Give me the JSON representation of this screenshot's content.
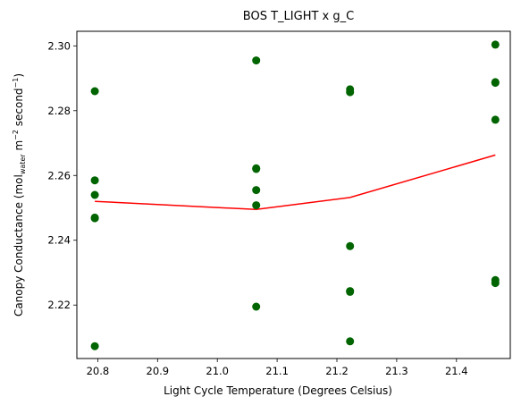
{
  "chart_data": {
    "type": "scatter",
    "title": "BOS T_LIGHT x g_C",
    "xlabel": "Light Cycle Temperature (Degrees Celsius)",
    "ylabel": {
      "prefix": "Canopy Conductance (mol",
      "subscript": "water",
      "middle": " m",
      "sup1": "−2",
      "middle2": " second",
      "sup2": "−1",
      "suffix": ")"
    },
    "xlim": [
      20.765,
      21.49
    ],
    "ylim": [
      2.2035,
      2.3045
    ],
    "xticks": [
      "20.8",
      "20.9",
      "21.0",
      "21.1",
      "21.2",
      "21.3",
      "21.4"
    ],
    "xtick_values": [
      20.8,
      20.9,
      21.0,
      21.1,
      21.2,
      21.3,
      21.4
    ],
    "yticks": [
      "2.22",
      "2.24",
      "2.26",
      "2.28",
      "2.30"
    ],
    "ytick_values": [
      2.22,
      2.24,
      2.26,
      2.28,
      2.3
    ],
    "grid": false,
    "points_color": "#006400",
    "line_color": "#ff0000",
    "points": [
      {
        "x": 20.795,
        "y": 2.286
      },
      {
        "x": 20.795,
        "y": 2.2585
      },
      {
        "x": 20.795,
        "y": 2.254
      },
      {
        "x": 20.795,
        "y": 2.247
      },
      {
        "x": 20.795,
        "y": 2.2468
      },
      {
        "x": 20.795,
        "y": 2.2073
      },
      {
        "x": 21.065,
        "y": 2.2955
      },
      {
        "x": 21.065,
        "y": 2.2622
      },
      {
        "x": 21.065,
        "y": 2.262
      },
      {
        "x": 21.065,
        "y": 2.2555
      },
      {
        "x": 21.065,
        "y": 2.2508
      },
      {
        "x": 21.065,
        "y": 2.2195
      },
      {
        "x": 21.222,
        "y": 2.2866
      },
      {
        "x": 21.222,
        "y": 2.2857
      },
      {
        "x": 21.222,
        "y": 2.2382
      },
      {
        "x": 21.222,
        "y": 2.2243
      },
      {
        "x": 21.222,
        "y": 2.2241
      },
      {
        "x": 21.222,
        "y": 2.2088
      },
      {
        "x": 21.465,
        "y": 2.3004
      },
      {
        "x": 21.465,
        "y": 2.2888
      },
      {
        "x": 21.465,
        "y": 2.2886
      },
      {
        "x": 21.465,
        "y": 2.2772
      },
      {
        "x": 21.465,
        "y": 2.2277
      },
      {
        "x": 21.465,
        "y": 2.2268
      }
    ],
    "line": {
      "x": [
        20.795,
        21.065,
        21.222,
        21.465
      ],
      "y": [
        2.252,
        2.2495,
        2.2532,
        2.2663
      ]
    }
  }
}
